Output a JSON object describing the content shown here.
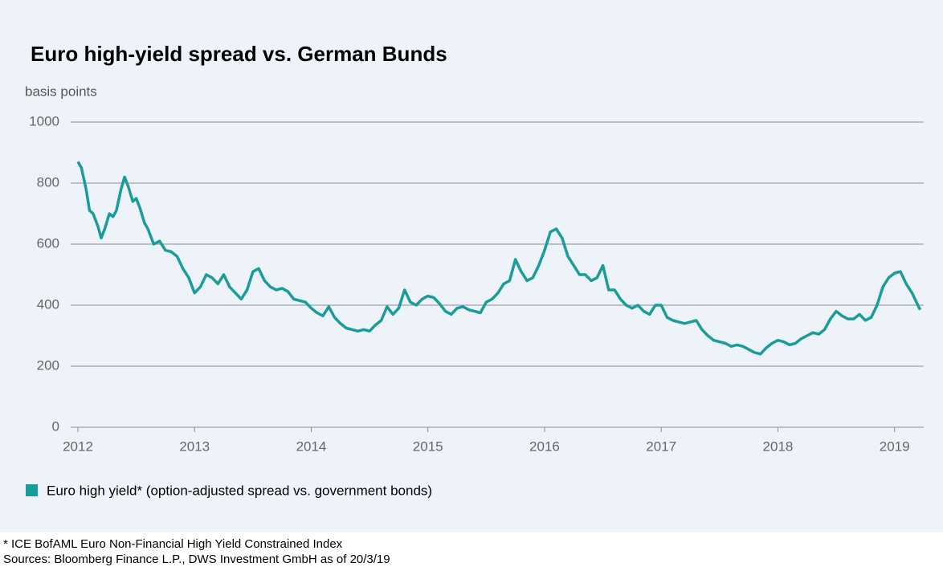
{
  "chart_data": {
    "type": "line",
    "title": "Euro high-yield spread vs. German Bunds",
    "y_axis_label": "basis points",
    "footnote": "* ICE BofAML Euro Non-Financial High Yield Constrained Index",
    "source": "Sources: Bloomberg Finance L.P., DWS Investment GmbH as of 20/3/19",
    "x": [
      2012.0,
      2012.03,
      2012.07,
      2012.1,
      2012.13,
      2012.17,
      2012.2,
      2012.23,
      2012.27,
      2012.3,
      2012.33,
      2012.37,
      2012.4,
      2012.43,
      2012.47,
      2012.5,
      2012.53,
      2012.57,
      2012.6,
      2012.65,
      2012.7,
      2012.75,
      2012.8,
      2012.85,
      2012.9,
      2012.95,
      2013.0,
      2013.05,
      2013.1,
      2013.15,
      2013.2,
      2013.25,
      2013.3,
      2013.35,
      2013.4,
      2013.45,
      2013.5,
      2013.55,
      2013.6,
      2013.65,
      2013.7,
      2013.75,
      2013.8,
      2013.85,
      2013.9,
      2013.95,
      2014.0,
      2014.05,
      2014.1,
      2014.15,
      2014.2,
      2014.25,
      2014.3,
      2014.35,
      2014.4,
      2014.45,
      2014.5,
      2014.55,
      2014.6,
      2014.65,
      2014.7,
      2014.75,
      2014.8,
      2014.85,
      2014.9,
      2014.95,
      2015.0,
      2015.05,
      2015.1,
      2015.15,
      2015.2,
      2015.25,
      2015.3,
      2015.35,
      2015.4,
      2015.45,
      2015.5,
      2015.55,
      2015.6,
      2015.65,
      2015.7,
      2015.75,
      2015.8,
      2015.85,
      2015.9,
      2015.95,
      2016.0,
      2016.05,
      2016.1,
      2016.15,
      2016.2,
      2016.25,
      2016.3,
      2016.35,
      2016.4,
      2016.45,
      2016.5,
      2016.55,
      2016.6,
      2016.65,
      2016.7,
      2016.75,
      2016.8,
      2016.85,
      2016.9,
      2016.95,
      2017.0,
      2017.05,
      2017.1,
      2017.15,
      2017.2,
      2017.25,
      2017.3,
      2017.35,
      2017.4,
      2017.45,
      2017.5,
      2017.55,
      2017.6,
      2017.65,
      2017.7,
      2017.75,
      2017.8,
      2017.85,
      2017.9,
      2017.95,
      2018.0,
      2018.05,
      2018.1,
      2018.15,
      2018.2,
      2018.25,
      2018.3,
      2018.35,
      2018.4,
      2018.45,
      2018.5,
      2018.55,
      2018.6,
      2018.65,
      2018.7,
      2018.75,
      2018.8,
      2018.85,
      2018.9,
      2018.95,
      2019.0,
      2019.05,
      2019.1,
      2019.15,
      2019.2,
      2019.22
    ],
    "series": [
      {
        "name": "Euro high yield* (option-adjusted spread vs. government bonds)",
        "color": "#1a9c9a",
        "values": [
          870,
          850,
          780,
          710,
          700,
          660,
          620,
          650,
          700,
          690,
          710,
          780,
          820,
          790,
          740,
          750,
          720,
          670,
          650,
          600,
          610,
          580,
          575,
          560,
          520,
          490,
          440,
          460,
          500,
          490,
          470,
          500,
          460,
          440,
          420,
          450,
          510,
          520,
          480,
          460,
          450,
          455,
          445,
          420,
          415,
          410,
          390,
          375,
          365,
          395,
          360,
          340,
          325,
          320,
          315,
          320,
          315,
          335,
          350,
          395,
          370,
          390,
          450,
          410,
          400,
          420,
          430,
          425,
          405,
          380,
          370,
          390,
          395,
          385,
          380,
          375,
          410,
          420,
          440,
          470,
          480,
          550,
          510,
          480,
          490,
          530,
          580,
          640,
          650,
          620,
          560,
          530,
          500,
          500,
          480,
          490,
          530,
          450,
          450,
          420,
          400,
          390,
          400,
          380,
          370,
          400,
          400,
          360,
          350,
          345,
          340,
          345,
          350,
          320,
          300,
          285,
          280,
          275,
          265,
          270,
          265,
          255,
          245,
          240,
          260,
          275,
          285,
          280,
          270,
          275,
          290,
          300,
          310,
          305,
          320,
          355,
          380,
          365,
          355,
          355,
          370,
          350,
          360,
          400,
          460,
          490,
          505,
          510,
          470,
          440,
          400,
          385
        ]
      }
    ],
    "xlim": [
      2012,
      2019.25
    ],
    "xticks": [
      2012,
      2013,
      2014,
      2015,
      2016,
      2017,
      2018,
      2019
    ],
    "ylim": [
      0,
      1000
    ],
    "yticks": [
      0,
      200,
      400,
      600,
      800,
      1000
    ],
    "grid": true
  }
}
